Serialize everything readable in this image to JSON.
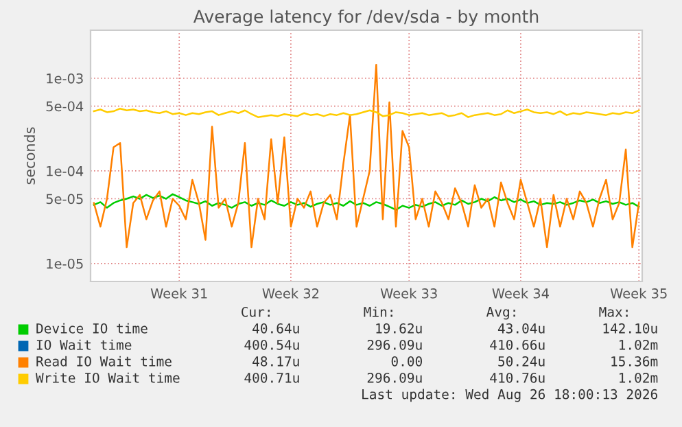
{
  "chart_data": {
    "type": "line",
    "title": "Average latency for /dev/sda - by month",
    "ylabel": "seconds",
    "log": "y",
    "grid": true,
    "legend": "bottom",
    "categories": [
      null,
      null,
      null,
      null,
      null,
      null,
      null,
      null,
      null,
      null,
      null,
      null,
      null,
      "Week 31",
      null,
      null,
      null,
      null,
      null,
      null,
      null,
      null,
      null,
      null,
      null,
      null,
      null,
      null,
      null,
      null,
      "Week 32",
      null,
      null,
      null,
      null,
      null,
      null,
      null,
      null,
      null,
      null,
      null,
      null,
      null,
      null,
      null,
      null,
      null,
      "Week 33",
      null,
      null,
      null,
      null,
      null,
      null,
      null,
      null,
      null,
      null,
      null,
      null,
      null,
      null,
      null,
      null,
      "Week 34",
      null,
      null,
      null,
      null,
      null,
      null,
      null,
      null,
      null,
      null,
      null,
      null,
      null,
      null,
      null,
      null,
      null,
      "Week 35"
    ],
    "ylim": [
      6.4e-06,
      0.0033
    ],
    "yticks": [
      {
        "value": 1e-05,
        "label": "1e-05"
      },
      {
        "value": 5e-05,
        "label": "5e-05"
      },
      {
        "value": 0.0001,
        "label": "1e-04"
      },
      {
        "value": 0.0005,
        "label": "5e-04"
      },
      {
        "value": 0.001,
        "label": "1e-03"
      }
    ],
    "series": [
      {
        "name": "Device IO time",
        "color": "#00cc00",
        "values": [
          4.3e-05,
          4.6e-05,
          4e-05,
          4.5e-05,
          4.8e-05,
          5e-05,
          5.3e-05,
          5e-05,
          5.5e-05,
          5.1e-05,
          5.4e-05,
          5e-05,
          5.6e-05,
          5.2e-05,
          4.8e-05,
          4.6e-05,
          4.4e-05,
          4.7e-05,
          4.2e-05,
          4.5e-05,
          4.3e-05,
          4e-05,
          4.4e-05,
          4.6e-05,
          4.2e-05,
          4.5e-05,
          4.3e-05,
          4.8e-05,
          4.4e-05,
          4.2e-05,
          4.6e-05,
          4.3e-05,
          4.5e-05,
          4.1e-05,
          4.4e-05,
          4.6e-05,
          4.3e-05,
          4.5e-05,
          4.2e-05,
          4.7e-05,
          4.3e-05,
          4.5e-05,
          4.2e-05,
          4.6e-05,
          4.4e-05,
          4.1e-05,
          3.8e-05,
          4.2e-05,
          4e-05,
          4.3e-05,
          4.1e-05,
          4.4e-05,
          4.6e-05,
          4.2e-05,
          4.5e-05,
          4.3e-05,
          4.8e-05,
          4.4e-05,
          4.6e-05,
          5e-05,
          4.7e-05,
          5.2e-05,
          4.8e-05,
          5e-05,
          4.6e-05,
          4.9e-05,
          4.5e-05,
          4.7e-05,
          4.3e-05,
          4.5e-05,
          4.4e-05,
          4.6e-05,
          4.3e-05,
          4.5e-05,
          4.8e-05,
          4.6e-05,
          4.9e-05,
          4.5e-05,
          4.7e-05,
          4.4e-05,
          4.6e-05,
          4.3e-05,
          4.5e-05,
          4.1e-05
        ]
      },
      {
        "name": "IO Wait time",
        "color": "#0066b3",
        "values": [
          null,
          null,
          null,
          null,
          null,
          null,
          null,
          null,
          null,
          null,
          null,
          null,
          null,
          null,
          null,
          null,
          null,
          null,
          null,
          null,
          null,
          null,
          null,
          null,
          null,
          null,
          null,
          null,
          null,
          null,
          null,
          null,
          null,
          null,
          null,
          null,
          null,
          null,
          null,
          null,
          null,
          null,
          null,
          null,
          null,
          null,
          null,
          null,
          null,
          null,
          null,
          null,
          null,
          null,
          null,
          null,
          null,
          null,
          null,
          null,
          null,
          null,
          null,
          null,
          null,
          null,
          null,
          null,
          null,
          null,
          null,
          null,
          null,
          null,
          null,
          null,
          null,
          null,
          null,
          null,
          null,
          null,
          null,
          null
        ]
      },
      {
        "name": "Read IO Wait time",
        "color": "#ff8000",
        "values": [
          4.5e-05,
          2.5e-05,
          5e-05,
          0.00018,
          0.0002,
          1.5e-05,
          4.5e-05,
          5.5e-05,
          3e-05,
          4.8e-05,
          6e-05,
          2.5e-05,
          5e-05,
          4.2e-05,
          3e-05,
          8e-05,
          4.5e-05,
          1.8e-05,
          0.0003,
          4e-05,
          5e-05,
          2.5e-05,
          4.5e-05,
          0.0002,
          1.5e-05,
          5e-05,
          3e-05,
          0.00022,
          4.5e-05,
          0.00023,
          2.5e-05,
          5e-05,
          4e-05,
          6e-05,
          2.5e-05,
          4.5e-05,
          5.5e-05,
          3e-05,
          0.00012,
          0.0004,
          2.5e-05,
          5e-05,
          0.0001,
          0.0014,
          3e-05,
          0.00055,
          2.5e-05,
          0.00027,
          0.00018,
          3e-05,
          5e-05,
          2.5e-05,
          6e-05,
          4.5e-05,
          3e-05,
          6.5e-05,
          4.5e-05,
          2.5e-05,
          7e-05,
          4e-05,
          5e-05,
          2.5e-05,
          7.5e-05,
          4.5e-05,
          3e-05,
          8e-05,
          4.5e-05,
          2.5e-05,
          5e-05,
          1.5e-05,
          5.5e-05,
          2.5e-05,
          5e-05,
          3e-05,
          6e-05,
          4.5e-05,
          2.5e-05,
          5e-05,
          8e-05,
          3e-05,
          4.5e-05,
          0.00017,
          1.5e-05,
          4.5e-05
        ]
      },
      {
        "name": "Write IO Wait time",
        "color": "#ffcc00",
        "values": [
          0.00044,
          0.00046,
          0.00043,
          0.00044,
          0.00047,
          0.00045,
          0.00046,
          0.00044,
          0.00045,
          0.00043,
          0.00042,
          0.00044,
          0.00041,
          0.00042,
          0.0004,
          0.00042,
          0.00041,
          0.00043,
          0.00044,
          0.0004,
          0.00042,
          0.00044,
          0.00042,
          0.00045,
          0.00041,
          0.00038,
          0.00039,
          0.0004,
          0.00039,
          0.00041,
          0.0004,
          0.00039,
          0.00042,
          0.0004,
          0.00041,
          0.00039,
          0.00041,
          0.0004,
          0.00042,
          0.0004,
          0.00041,
          0.00043,
          0.00045,
          0.00043,
          0.00039,
          0.0004,
          0.00043,
          0.00042,
          0.0004,
          0.00041,
          0.00042,
          0.0004,
          0.00041,
          0.00042,
          0.00039,
          0.0004,
          0.00042,
          0.00038,
          0.0004,
          0.00041,
          0.00042,
          0.0004,
          0.00041,
          0.00045,
          0.00042,
          0.00044,
          0.00046,
          0.00043,
          0.00042,
          0.00043,
          0.00041,
          0.00044,
          0.0004,
          0.00042,
          0.00041,
          0.00043,
          0.00042,
          0.00041,
          0.0004,
          0.00042,
          0.00041,
          0.00043,
          0.00042,
          0.00045
        ]
      }
    ],
    "annotations": [
      "Cur:",
      "Min:",
      "Avg:",
      "Max:",
      "40.64u",
      "19.62u",
      "43.04u",
      "142.10u",
      "400.54u",
      "296.09u",
      "410.66u",
      "1.02m",
      "48.17u",
      "0.00",
      "50.24u",
      "15.36m",
      "400.71u",
      "296.09u",
      "410.76u",
      "1.02m",
      "Last update: Wed Aug 26 18:00:13 2026"
    ]
  }
}
